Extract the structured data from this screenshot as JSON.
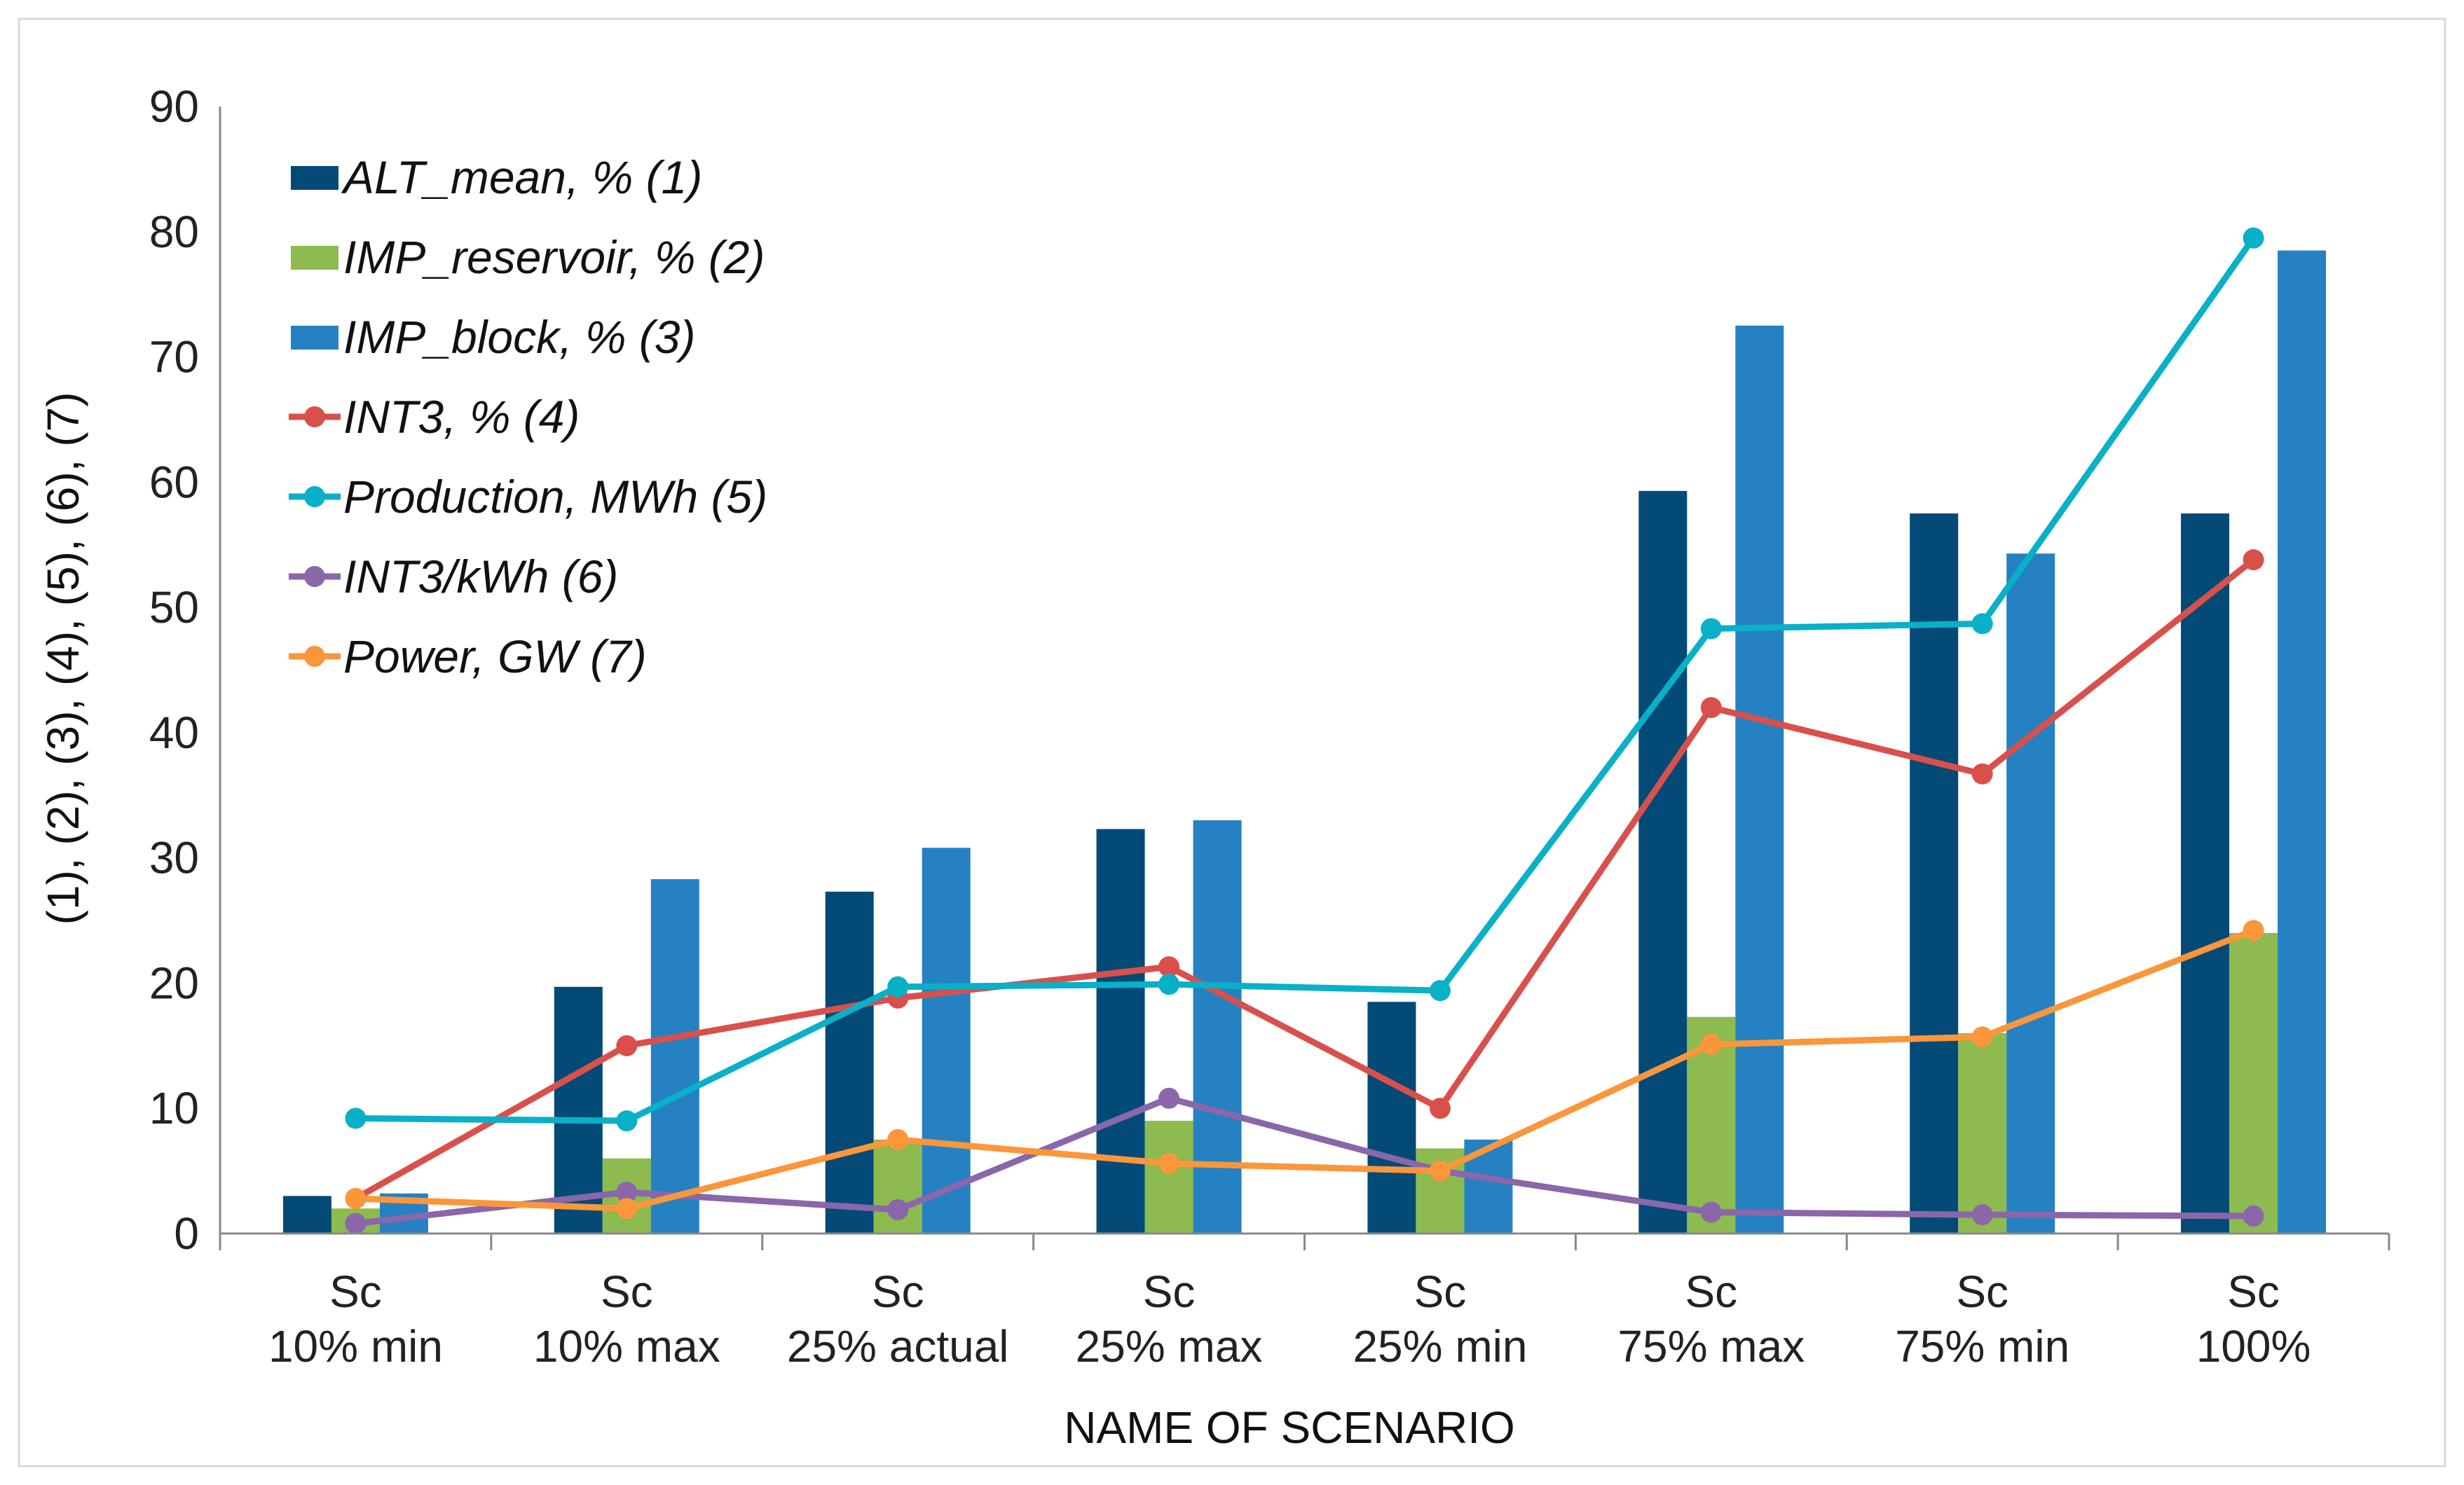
{
  "chart_data": {
    "type": "bar",
    "title": "",
    "xlabel": "NAME OF SCENARIO",
    "ylabel": "(1), (2), (3), (4), (5), (6), (7)",
    "ylim": [
      0,
      90
    ],
    "yticks": [
      0,
      10,
      20,
      30,
      40,
      50,
      60,
      70,
      80,
      90
    ],
    "grid": false,
    "legend_position": "top-left",
    "categories": [
      [
        "Sc",
        "10% min"
      ],
      [
        "Sc",
        "10% max"
      ],
      [
        "Sc",
        "25% actual"
      ],
      [
        "Sc",
        "25% max"
      ],
      [
        "Sc",
        "25% min"
      ],
      [
        "Sc",
        "75% max"
      ],
      [
        "Sc",
        "75% min"
      ],
      [
        "Sc",
        "100%"
      ]
    ],
    "series": [
      {
        "name": "ALT_mean, % (1)",
        "kind": "bar",
        "color": "#034A77",
        "values": [
          3.0,
          19.7,
          27.3,
          32.3,
          18.5,
          59.3,
          57.5,
          57.5
        ]
      },
      {
        "name": "IMP_reservoir, % (2)",
        "kind": "bar",
        "color": "#8DBB4F",
        "values": [
          2.0,
          6.0,
          7.5,
          9.0,
          6.8,
          17.3,
          16.0,
          24.0
        ]
      },
      {
        "name": "IMP_block, % (3)",
        "kind": "bar",
        "color": "#2581C1",
        "values": [
          3.2,
          28.3,
          30.8,
          33.0,
          7.5,
          72.5,
          54.3,
          78.5
        ]
      },
      {
        "name": "INT3, % (4)",
        "kind": "line",
        "color": "#D9504B",
        "values": [
          2.8,
          15.0,
          18.8,
          21.3,
          10.0,
          42.0,
          36.7,
          53.8
        ]
      },
      {
        "name": "Production, MWh (5)",
        "kind": "line",
        "color": "#08B0C8",
        "values": [
          9.2,
          9.0,
          19.7,
          19.9,
          19.4,
          48.3,
          48.7,
          79.5
        ]
      },
      {
        "name": "INT3/kWh (6)",
        "kind": "line",
        "color": "#8A66AA",
        "values": [
          0.8,
          3.3,
          1.9,
          10.8,
          5.0,
          1.7,
          1.5,
          1.4
        ]
      },
      {
        "name": "Power, GW (7)",
        "kind": "line",
        "color": "#FB963A",
        "values": [
          2.8,
          2.0,
          7.5,
          5.6,
          5.0,
          15.1,
          15.7,
          24.2
        ]
      }
    ]
  }
}
